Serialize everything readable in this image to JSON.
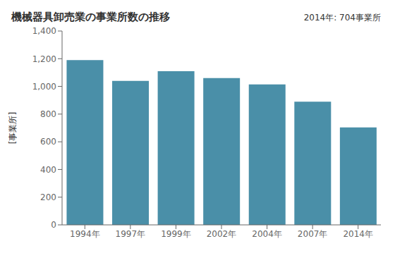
{
  "chart_data": {
    "type": "bar",
    "title": "機械器具卸売業の事業所数の推移",
    "ylabel": "[事業所]",
    "annotation": "2014年: 704事業所",
    "categories": [
      "1994年",
      "1997年",
      "1999年",
      "2002年",
      "2004年",
      "2007年",
      "2014年"
    ],
    "values": [
      1190,
      1040,
      1110,
      1060,
      1015,
      890,
      704
    ],
    "color": "#4a8fa8",
    "ylim": [
      0,
      1400
    ],
    "yticks": [
      0,
      200,
      400,
      600,
      800,
      {
        "value": 1000,
        "label": "1,000"
      },
      {
        "value": 1200,
        "label": "1,200"
      },
      {
        "value": 1400,
        "label": "1,400"
      }
    ],
    "grid": false
  }
}
